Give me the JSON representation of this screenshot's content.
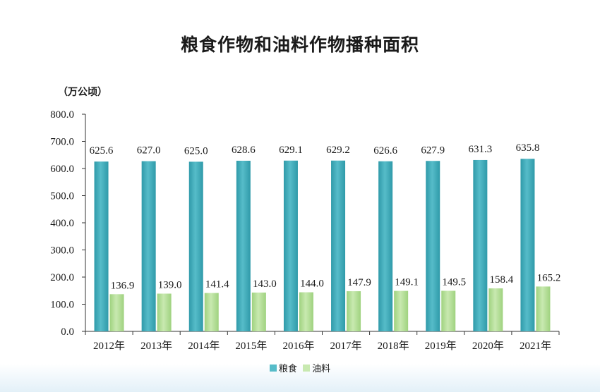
{
  "title": "粮食作物和油料作物播种面积",
  "unit": "（万公顷）",
  "colors": {
    "grain": "#56bcc9",
    "grain_dark": "#2f9aa9",
    "oil": "#c8e9b0",
    "oil_dark": "#9fd27f",
    "axis": "#333333"
  },
  "chart_data": {
    "type": "bar",
    "categories": [
      "2012年",
      "2013年",
      "2014年",
      "2015年",
      "2016年",
      "2017年",
      "2018年",
      "2019年",
      "2020年",
      "2021年"
    ],
    "series": [
      {
        "name": "粮食",
        "values": [
          625.6,
          627.0,
          625.0,
          628.6,
          629.1,
          629.2,
          626.6,
          627.9,
          631.3,
          635.8
        ]
      },
      {
        "name": "油料",
        "values": [
          136.9,
          139.0,
          141.4,
          143.0,
          144.0,
          147.9,
          149.1,
          149.5,
          158.4,
          165.2
        ]
      }
    ],
    "value_labels": {
      "粮食": [
        "625.6",
        "627.0",
        "625.0",
        "628.6",
        "629.1",
        "629.2",
        "626.6",
        "627.9",
        "631.3",
        "635.8"
      ],
      "油料": [
        "136.9",
        "139.0",
        "141.4",
        "143.0",
        "144.0",
        "147.9",
        "149.1",
        "149.5",
        "158.4",
        "165.2"
      ]
    },
    "ylim": [
      0,
      800
    ],
    "yticks": [
      0,
      100,
      200,
      300,
      400,
      500,
      600,
      700,
      800
    ],
    "ytick_labels": [
      "0.0",
      "100.0",
      "200.0",
      "300.0",
      "400.0",
      "500.0",
      "600.0",
      "700.0",
      "800.0"
    ],
    "grid": false,
    "legend_position": "bottom-center"
  },
  "legend": [
    {
      "name": "粮食"
    },
    {
      "name": "油料"
    }
  ]
}
